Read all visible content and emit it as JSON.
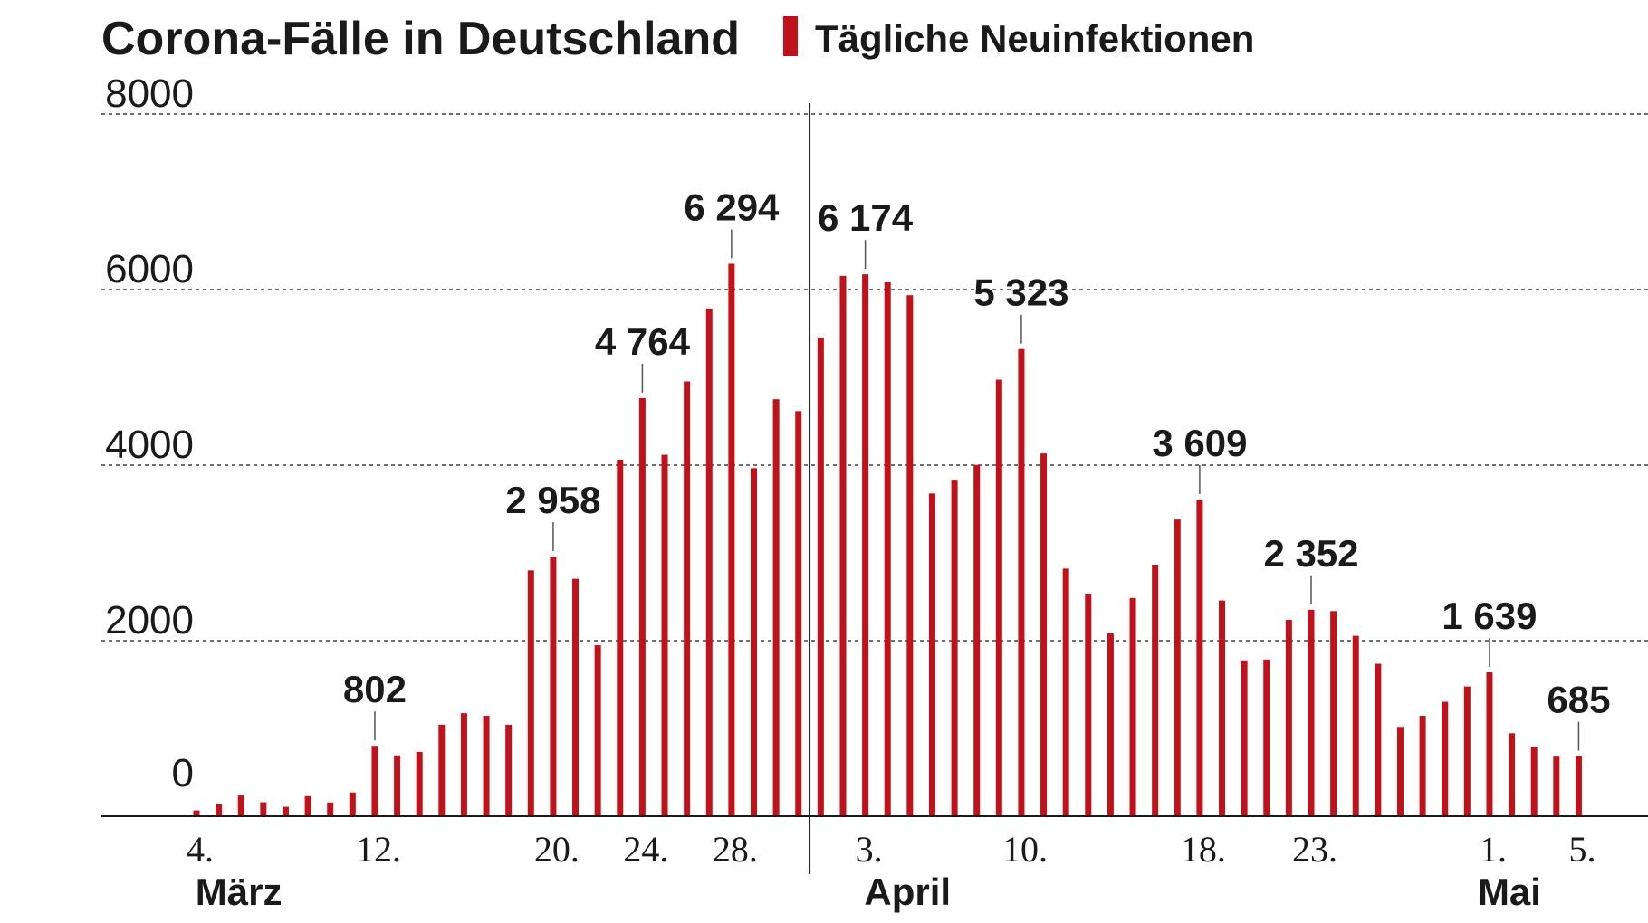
{
  "chart_data": {
    "type": "bar",
    "title": "Corona-Fälle in Deutschland",
    "legend": [
      {
        "label": "Tägliche Neuinfektionen",
        "color": "#c0121b"
      }
    ],
    "color": "#c0121b",
    "ylim": [
      0,
      8000
    ],
    "yticks": [
      0,
      2000,
      4000,
      6000,
      8000
    ],
    "grid": "horizontal dashed",
    "x": [
      "2020-03-04",
      "2020-03-05",
      "2020-03-06",
      "2020-03-07",
      "2020-03-08",
      "2020-03-09",
      "2020-03-10",
      "2020-03-11",
      "2020-03-12",
      "2020-03-13",
      "2020-03-14",
      "2020-03-15",
      "2020-03-16",
      "2020-03-17",
      "2020-03-18",
      "2020-03-19",
      "2020-03-20",
      "2020-03-21",
      "2020-03-22",
      "2020-03-23",
      "2020-03-24",
      "2020-03-25",
      "2020-03-26",
      "2020-03-27",
      "2020-03-28",
      "2020-03-29",
      "2020-03-30",
      "2020-03-31",
      "2020-04-01",
      "2020-04-02",
      "2020-04-03",
      "2020-04-04",
      "2020-04-05",
      "2020-04-06",
      "2020-04-07",
      "2020-04-08",
      "2020-04-09",
      "2020-04-10",
      "2020-04-11",
      "2020-04-12",
      "2020-04-13",
      "2020-04-14",
      "2020-04-15",
      "2020-04-16",
      "2020-04-17",
      "2020-04-18",
      "2020-04-19",
      "2020-04-20",
      "2020-04-21",
      "2020-04-22",
      "2020-04-23",
      "2020-04-24",
      "2020-04-25",
      "2020-04-26",
      "2020-04-27",
      "2020-04-28",
      "2020-04-29",
      "2020-04-30",
      "2020-05-01",
      "2020-05-02",
      "2020-05-03",
      "2020-05-04",
      "2020-05-05"
    ],
    "values": [
      66,
      136,
      236,
      159,
      107,
      229,
      157,
      271,
      802,
      693,
      733,
      1043,
      1174,
      1144,
      1042,
      2801,
      2958,
      2705,
      1948,
      4062,
      4764,
      4118,
      4954,
      5780,
      6294,
      3965,
      4751,
      4615,
      5453,
      6156,
      6174,
      6082,
      5936,
      3677,
      3834,
      4003,
      4974,
      5323,
      4133,
      2821,
      2537,
      2082,
      2486,
      2866,
      3380,
      3609,
      2458,
      1775,
      1785,
      2237,
      2352,
      2337,
      2055,
      1737,
      1018,
      1144,
      1304,
      1478,
      1639,
      945,
      793,
      679,
      685
    ],
    "xtick_labels": [
      {
        "date": "2020-03-04",
        "label": "4."
      },
      {
        "date": "2020-03-12",
        "label": "12."
      },
      {
        "date": "2020-03-20",
        "label": "20."
      },
      {
        "date": "2020-03-24",
        "label": "24."
      },
      {
        "date": "2020-03-28",
        "label": "28."
      },
      {
        "date": "2020-04-03",
        "label": "3."
      },
      {
        "date": "2020-04-10",
        "label": "10."
      },
      {
        "date": "2020-04-18",
        "label": "18."
      },
      {
        "date": "2020-04-23",
        "label": "23."
      },
      {
        "date": "2020-05-01",
        "label": "1."
      },
      {
        "date": "2020-05-05",
        "label": "5."
      }
    ],
    "months": [
      {
        "date": "2020-03-05",
        "label": "März"
      },
      {
        "date": "2020-04-04",
        "label": "April"
      },
      {
        "date": "2020-05-01",
        "label": "Mai"
      }
    ],
    "annotations": [
      {
        "date": "2020-03-12",
        "label": "802"
      },
      {
        "date": "2020-03-20",
        "label": "2 958"
      },
      {
        "date": "2020-03-24",
        "label": "4 764"
      },
      {
        "date": "2020-03-28",
        "label": "6 294"
      },
      {
        "date": "2020-04-03",
        "label": "6 174"
      },
      {
        "date": "2020-04-10",
        "label": "5 323"
      },
      {
        "date": "2020-04-18",
        "label": "3 609"
      },
      {
        "date": "2020-04-23",
        "label": "2 352"
      },
      {
        "date": "2020-05-01",
        "label": "1 639"
      },
      {
        "date": "2020-05-05",
        "label": "685"
      }
    ],
    "separators": [
      "2020-04-01"
    ]
  }
}
